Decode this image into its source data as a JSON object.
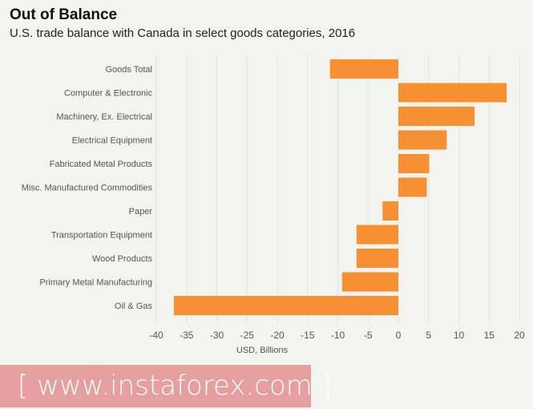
{
  "chart_data": {
    "type": "bar",
    "orientation": "horizontal",
    "title": "Out of Balance",
    "subtitle": "U.S. trade balance with Canada in select goods categories, 2016",
    "xlabel": "USD, Billions",
    "ylabel": "",
    "categories": [
      "Goods Total",
      "Computer & Electronic",
      "Machinery, Ex. Electrical",
      "Electrical Equipment",
      "Fabricated Metal Products",
      "Misc. Manufactured Commodities",
      "Paper",
      "Transportation Equipment",
      "Wood Products",
      "Primary Metal Manufacturing",
      "Oil & Gas"
    ],
    "values": [
      -11.3,
      17.9,
      12.6,
      8.0,
      5.1,
      4.7,
      -2.6,
      -6.9,
      -6.9,
      -9.3,
      -37.1
    ],
    "xlim": [
      -40,
      20
    ],
    "xticks": [
      -40,
      -35,
      -30,
      -25,
      -20,
      -15,
      -10,
      -5,
      0,
      5,
      10,
      15,
      20
    ],
    "grid": "vertical",
    "bar_color": "#f78f33",
    "legend": "none"
  },
  "watermark": "[ www.instaforex.com ]"
}
